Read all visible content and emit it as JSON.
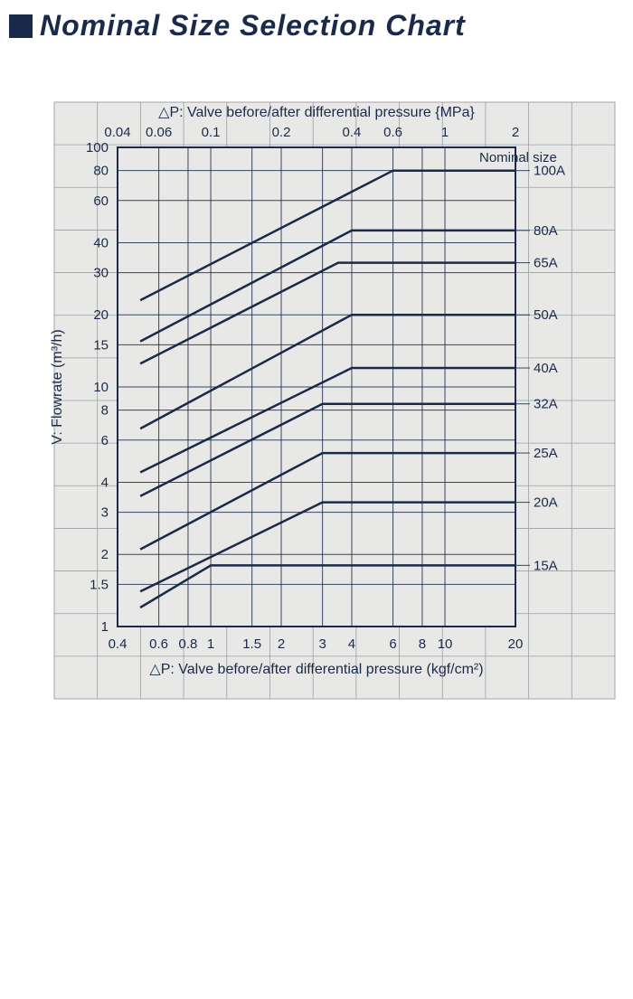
{
  "title": "Nominal Size Selection Chart",
  "chart": {
    "type": "line",
    "background_color": "#e8e8e6",
    "grid_color": "#1a2a4a",
    "line_color": "#1a2a4a",
    "line_width": 2.5,
    "font_color": "#1a2a4a",
    "nominal_size_heading": "Nominal size",
    "x_top": {
      "label": "△P: Valve before/after differential pressure {MPa}",
      "min": 0.04,
      "max": 2,
      "scale": "log",
      "ticks": [
        0.04,
        0.06,
        0.1,
        0.2,
        0.4,
        0.6,
        1,
        2
      ]
    },
    "x_bottom": {
      "label": "△P: Valve before/after differential pressure (kgf/cm²)",
      "min": 0.4,
      "max": 20,
      "scale": "log",
      "ticks": [
        0.4,
        0.6,
        0.8,
        1,
        1.5,
        2,
        3,
        4,
        6,
        8,
        10,
        20
      ]
    },
    "y": {
      "label": "V: Flowrate (m³/h)",
      "min": 1,
      "max": 100,
      "scale": "log",
      "ticks": [
        1,
        1.5,
        2,
        3,
        4,
        6,
        8,
        10,
        15,
        20,
        30,
        40,
        60,
        80,
        100
      ]
    },
    "series": [
      {
        "name": "100A",
        "points": [
          [
            0.5,
            23
          ],
          [
            6,
            80
          ],
          [
            20,
            80
          ]
        ]
      },
      {
        "name": "80A",
        "points": [
          [
            0.5,
            15.5
          ],
          [
            4,
            45
          ],
          [
            20,
            45
          ]
        ]
      },
      {
        "name": "65A",
        "points": [
          [
            0.5,
            12.5
          ],
          [
            3.5,
            33
          ],
          [
            20,
            33
          ]
        ]
      },
      {
        "name": "50A",
        "points": [
          [
            0.5,
            6.7
          ],
          [
            4,
            20
          ],
          [
            20,
            20
          ]
        ]
      },
      {
        "name": "40A",
        "points": [
          [
            0.5,
            4.4
          ],
          [
            4,
            12
          ],
          [
            20,
            12
          ]
        ]
      },
      {
        "name": "32A",
        "points": [
          [
            0.5,
            3.5
          ],
          [
            3,
            8.5
          ],
          [
            20,
            8.5
          ]
        ]
      },
      {
        "name": "25A",
        "points": [
          [
            0.5,
            2.1
          ],
          [
            3,
            5.3
          ],
          [
            20,
            5.3
          ]
        ]
      },
      {
        "name": "20A",
        "points": [
          [
            0.5,
            1.4
          ],
          [
            3,
            3.3
          ],
          [
            20,
            3.3
          ]
        ]
      },
      {
        "name": "15A",
        "points": [
          [
            0.5,
            1.2
          ],
          [
            1,
            1.8
          ],
          [
            20,
            1.8
          ]
        ]
      }
    ]
  }
}
